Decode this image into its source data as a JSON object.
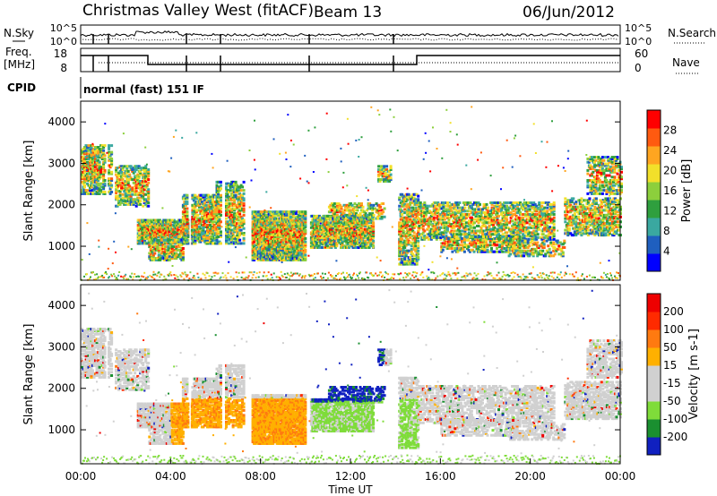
{
  "header": {
    "station": "Christmas Valley West (fitACF)",
    "beam": "Beam 13",
    "date": "06/Jun/2012"
  },
  "noise_panel": {
    "left_label": "N.Sky",
    "right_label": "N.Search",
    "left_ticks": [
      "10^5",
      "10^0"
    ],
    "right_ticks": [
      "10^5",
      "10^0"
    ]
  },
  "freq_panel": {
    "left_label_1": "Freq.",
    "left_label_2": "[MHz]",
    "right_label": "Nave",
    "left_ticks": [
      "18",
      "8"
    ],
    "right_ticks": [
      "60",
      "0"
    ]
  },
  "cpid": {
    "label": "CPID",
    "mode": "normal (fast) 151 IF"
  },
  "chart_data": [
    {
      "type": "heatmap",
      "quantity": "power",
      "ylabel": "Slant Range [km]",
      "ylim": [
        180,
        4500
      ],
      "xlim": [
        0,
        24
      ],
      "yticks": [
        "1000",
        "2000",
        "3000",
        "4000"
      ],
      "colorbar": {
        "label": "Power [dB]",
        "range": [
          0,
          32
        ],
        "ticks": [
          "4",
          "8",
          "12",
          "16",
          "20",
          "24",
          "28"
        ],
        "colors": [
          "#0000ff",
          "#1f5fbf",
          "#3aa8a0",
          "#2f9f3e",
          "#8ccf3c",
          "#f2e02a",
          "#ffa520",
          "#ff5a10",
          "#ff0000"
        ]
      }
    },
    {
      "type": "heatmap",
      "quantity": "velocity",
      "ylabel": "Slant Range [km]",
      "ylim": [
        180,
        4500
      ],
      "xlim": [
        0,
        24
      ],
      "yticks": [
        "1000",
        "2000",
        "3000",
        "4000"
      ],
      "colorbar": {
        "label": "Velocity [m s-1]",
        "range": [
          -250,
          250
        ],
        "ticks": [
          "200",
          "100",
          "50",
          "15",
          "-15",
          "-50",
          "-100",
          "-200"
        ],
        "colors": [
          "#1020c0",
          "#1a8f30",
          "#7fdc3a",
          "#d0d0d0",
          "#d0d0d0",
          "#ffb000",
          "#ff7a10",
          "#ff2a00",
          "#ee0000"
        ]
      }
    }
  ],
  "x_axis": {
    "ticks": [
      "00:00",
      "04:00",
      "08:00",
      "12:00",
      "16:00",
      "20:00",
      "00:00"
    ],
    "label": "Time UT"
  }
}
